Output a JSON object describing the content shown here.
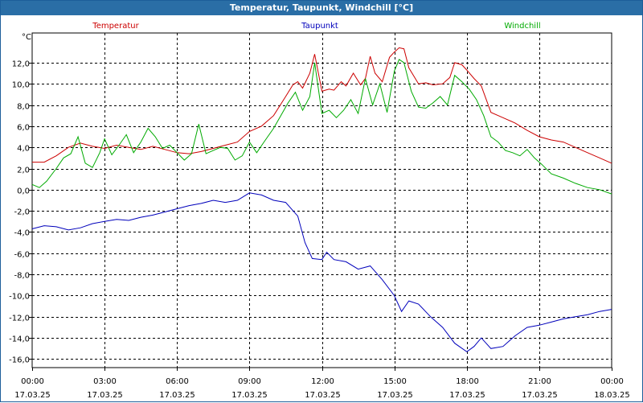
{
  "window": {
    "title": "Temperatur, Taupunkt, Windchill [°C]"
  },
  "chart_data": {
    "type": "line",
    "title": "Temperatur, Taupunkt, Windchill [°C]",
    "ylabel": "°C",
    "xlabel": "",
    "grid": true,
    "legend_placement": "top",
    "ylim": [
      -16.8,
      14.8
    ],
    "xlim": [
      0,
      24
    ],
    "y_ticks": [
      12,
      10,
      8,
      6,
      4,
      2,
      0,
      -2,
      -4,
      -6,
      -8,
      -10,
      -12,
      -14,
      -16
    ],
    "y_tick_labels": [
      "12,0",
      "10,0",
      "8,0",
      "6,0",
      "4,0",
      "2,0",
      "0,0",
      "-2,0",
      "-4,0",
      "-6,0",
      "-8,0",
      "-10,0",
      "-12,0",
      "-14,0",
      "-16,0"
    ],
    "x_ticks": [
      0,
      3,
      6,
      9,
      12,
      15,
      18,
      21,
      24
    ],
    "x_tick_labels": [
      [
        "00:00",
        "17.03.25"
      ],
      [
        "03:00",
        "17.03.25"
      ],
      [
        "06:00",
        "17.03.25"
      ],
      [
        "09:00",
        "17.03.25"
      ],
      [
        "12:00",
        "17.03.25"
      ],
      [
        "15:00",
        "17.03.25"
      ],
      [
        "18:00",
        "17.03.25"
      ],
      [
        "21:00",
        "17.03.25"
      ],
      [
        "00:00",
        "18.03.25"
      ]
    ],
    "series": [
      {
        "name": "Temperatur",
        "color": "#cc0000",
        "points": [
          [
            0,
            2.6
          ],
          [
            0.5,
            2.6
          ],
          [
            1,
            3.2
          ],
          [
            1.5,
            4.0
          ],
          [
            2,
            4.4
          ],
          [
            2.5,
            4.1
          ],
          [
            3,
            3.9
          ],
          [
            3.5,
            4.2
          ],
          [
            4,
            4.0
          ],
          [
            4.5,
            3.8
          ],
          [
            5,
            4.1
          ],
          [
            5.5,
            3.8
          ],
          [
            6,
            3.5
          ],
          [
            6.5,
            3.4
          ],
          [
            7,
            3.6
          ],
          [
            7.5,
            3.9
          ],
          [
            8,
            4.2
          ],
          [
            8.5,
            4.5
          ],
          [
            9,
            5.5
          ],
          [
            9.5,
            6.0
          ],
          [
            10,
            7.0
          ],
          [
            10.5,
            8.8
          ],
          [
            10.8,
            9.9
          ],
          [
            11,
            10.2
          ],
          [
            11.2,
            9.6
          ],
          [
            11.5,
            11.0
          ],
          [
            11.7,
            12.8
          ],
          [
            12,
            9.3
          ],
          [
            12.3,
            9.5
          ],
          [
            12.5,
            9.4
          ],
          [
            12.8,
            10.2
          ],
          [
            13,
            9.8
          ],
          [
            13.3,
            11.0
          ],
          [
            13.6,
            9.9
          ],
          [
            13.8,
            10.5
          ],
          [
            14,
            12.6
          ],
          [
            14.2,
            11.0
          ],
          [
            14.5,
            10.2
          ],
          [
            14.8,
            12.5
          ],
          [
            15,
            13.0
          ],
          [
            15.2,
            13.4
          ],
          [
            15.4,
            13.3
          ],
          [
            15.6,
            11.5
          ],
          [
            16,
            10.0
          ],
          [
            16.3,
            10.1
          ],
          [
            16.6,
            9.9
          ],
          [
            17,
            10.0
          ],
          [
            17.3,
            10.6
          ],
          [
            17.5,
            12.0
          ],
          [
            17.8,
            11.8
          ],
          [
            18,
            11.3
          ],
          [
            18.3,
            10.5
          ],
          [
            18.6,
            9.8
          ],
          [
            19,
            7.3
          ],
          [
            19.5,
            6.8
          ],
          [
            20,
            6.3
          ],
          [
            20.5,
            5.6
          ],
          [
            21,
            5.0
          ],
          [
            21.5,
            4.7
          ],
          [
            22,
            4.5
          ],
          [
            22.5,
            4.0
          ],
          [
            23,
            3.5
          ],
          [
            23.5,
            3.0
          ],
          [
            24,
            2.5
          ]
        ]
      },
      {
        "name": "Taupunkt",
        "color": "#0000bb",
        "points": [
          [
            0,
            -3.7
          ],
          [
            0.5,
            -3.4
          ],
          [
            1,
            -3.5
          ],
          [
            1.5,
            -3.8
          ],
          [
            2,
            -3.6
          ],
          [
            2.5,
            -3.2
          ],
          [
            3,
            -3.0
          ],
          [
            3.5,
            -2.8
          ],
          [
            4,
            -2.9
          ],
          [
            4.5,
            -2.6
          ],
          [
            5,
            -2.4
          ],
          [
            5.5,
            -2.1
          ],
          [
            6,
            -1.8
          ],
          [
            6.5,
            -1.5
          ],
          [
            7,
            -1.3
          ],
          [
            7.5,
            -1.0
          ],
          [
            8,
            -1.2
          ],
          [
            8.5,
            -1.0
          ],
          [
            9,
            -0.3
          ],
          [
            9.5,
            -0.5
          ],
          [
            10,
            -1.0
          ],
          [
            10.5,
            -1.2
          ],
          [
            11,
            -2.5
          ],
          [
            11.3,
            -5.0
          ],
          [
            11.6,
            -6.5
          ],
          [
            12,
            -6.6
          ],
          [
            12.2,
            -5.9
          ],
          [
            12.5,
            -6.6
          ],
          [
            13,
            -6.8
          ],
          [
            13.5,
            -7.5
          ],
          [
            14,
            -7.2
          ],
          [
            14.5,
            -8.5
          ],
          [
            15,
            -10.0
          ],
          [
            15.3,
            -11.5
          ],
          [
            15.6,
            -10.5
          ],
          [
            16,
            -10.8
          ],
          [
            16.5,
            -12.0
          ],
          [
            17,
            -13.0
          ],
          [
            17.5,
            -14.5
          ],
          [
            18,
            -15.3
          ],
          [
            18.3,
            -14.8
          ],
          [
            18.6,
            -14.0
          ],
          [
            19,
            -15.0
          ],
          [
            19.5,
            -14.8
          ],
          [
            20,
            -13.8
          ],
          [
            20.5,
            -13.0
          ],
          [
            21,
            -12.8
          ],
          [
            21.5,
            -12.5
          ],
          [
            22,
            -12.2
          ],
          [
            22.5,
            -12.0
          ],
          [
            23,
            -11.8
          ],
          [
            23.5,
            -11.5
          ],
          [
            24,
            -11.3
          ]
        ]
      },
      {
        "name": "Windchill",
        "color": "#00aa00",
        "points": [
          [
            0,
            0.5
          ],
          [
            0.3,
            0.2
          ],
          [
            0.6,
            0.8
          ],
          [
            1,
            2.0
          ],
          [
            1.3,
            3.0
          ],
          [
            1.6,
            3.4
          ],
          [
            1.9,
            5.0
          ],
          [
            2.2,
            2.5
          ],
          [
            2.5,
            2.1
          ],
          [
            2.8,
            3.5
          ],
          [
            3,
            4.8
          ],
          [
            3.3,
            3.3
          ],
          [
            3.6,
            4.2
          ],
          [
            3.9,
            5.2
          ],
          [
            4.2,
            3.5
          ],
          [
            4.5,
            4.5
          ],
          [
            4.8,
            5.8
          ],
          [
            5.1,
            5.0
          ],
          [
            5.4,
            3.9
          ],
          [
            5.7,
            4.2
          ],
          [
            6,
            3.5
          ],
          [
            6.3,
            2.8
          ],
          [
            6.6,
            3.4
          ],
          [
            6.9,
            6.2
          ],
          [
            7.2,
            3.4
          ],
          [
            7.5,
            3.7
          ],
          [
            7.8,
            4.0
          ],
          [
            8.1,
            3.9
          ],
          [
            8.4,
            2.8
          ],
          [
            8.7,
            3.2
          ],
          [
            9,
            4.5
          ],
          [
            9.3,
            3.5
          ],
          [
            9.6,
            4.5
          ],
          [
            10,
            5.8
          ],
          [
            10.3,
            7.0
          ],
          [
            10.6,
            8.2
          ],
          [
            10.9,
            9.2
          ],
          [
            11.2,
            7.5
          ],
          [
            11.5,
            8.8
          ],
          [
            11.7,
            12.0
          ],
          [
            12,
            7.2
          ],
          [
            12.3,
            7.5
          ],
          [
            12.6,
            6.8
          ],
          [
            12.9,
            7.5
          ],
          [
            13.2,
            8.5
          ],
          [
            13.5,
            7.2
          ],
          [
            13.8,
            10.5
          ],
          [
            14.1,
            8.0
          ],
          [
            14.4,
            10.0
          ],
          [
            14.7,
            7.3
          ],
          [
            15,
            11.2
          ],
          [
            15.2,
            12.3
          ],
          [
            15.4,
            12.0
          ],
          [
            15.7,
            9.3
          ],
          [
            16,
            7.8
          ],
          [
            16.3,
            7.7
          ],
          [
            16.6,
            8.2
          ],
          [
            16.9,
            8.8
          ],
          [
            17.2,
            8.0
          ],
          [
            17.5,
            10.8
          ],
          [
            17.8,
            10.2
          ],
          [
            18.1,
            9.5
          ],
          [
            18.4,
            8.5
          ],
          [
            18.7,
            7.0
          ],
          [
            19,
            5.0
          ],
          [
            19.3,
            4.5
          ],
          [
            19.6,
            3.7
          ],
          [
            19.9,
            3.5
          ],
          [
            20.2,
            3.2
          ],
          [
            20.5,
            3.8
          ],
          [
            20.8,
            3.0
          ],
          [
            21.1,
            2.4
          ],
          [
            21.5,
            1.5
          ],
          [
            22,
            1.1
          ],
          [
            22.5,
            0.6
          ],
          [
            23,
            0.2
          ],
          [
            23.5,
            0.0
          ],
          [
            24,
            -0.4
          ]
        ]
      }
    ]
  }
}
